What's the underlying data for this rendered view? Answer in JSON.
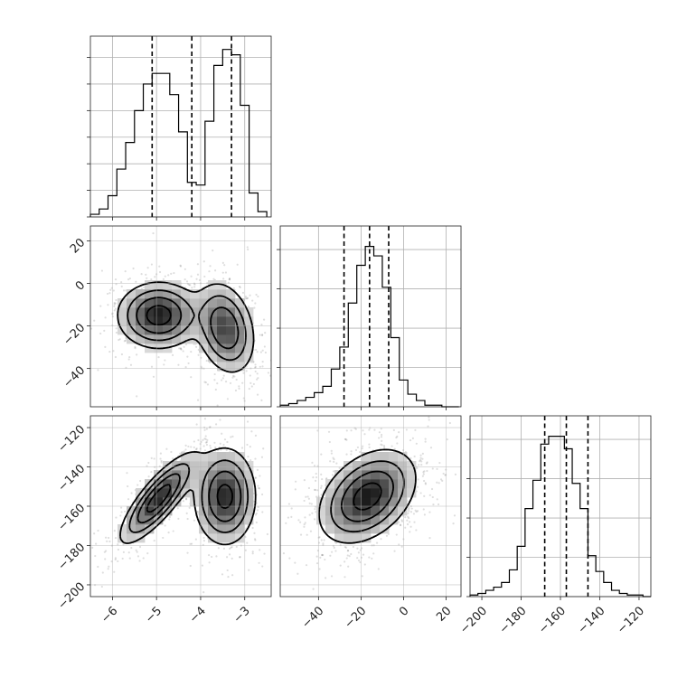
{
  "chart_data": {
    "type": "corner",
    "grid": true,
    "parameters": [
      {
        "range": [
          -6.5,
          -2.4
        ],
        "ticks": [
          -6,
          -5,
          -4,
          -3
        ],
        "tick_labels": [
          "−6",
          "−5",
          "−4",
          "−3"
        ],
        "quantiles": [
          -5.1,
          -4.2,
          -3.3
        ],
        "hist_bin_edges": [
          -6.5,
          -6.3,
          -6.1,
          -5.9,
          -5.7,
          -5.5,
          -5.3,
          -5.1,
          -4.9,
          -4.7,
          -4.5,
          -4.3,
          -4.1,
          -3.9,
          -3.7,
          -3.5,
          -3.3,
          -3.1,
          -2.9,
          -2.7,
          -2.5
        ],
        "hist_counts": [
          1,
          3,
          8,
          18,
          28,
          40,
          50,
          54,
          54,
          46,
          32,
          13,
          12,
          36,
          57,
          63,
          61,
          42,
          9,
          2
        ],
        "hist_ymax": 68,
        "hist_yticks": [
          0,
          10,
          20,
          30,
          40,
          50,
          60
        ]
      },
      {
        "range": [
          -58,
          27
        ],
        "ticks": [
          -40,
          -20,
          0,
          20
        ],
        "tick_labels": [
          "−40",
          "−20",
          "0",
          "20"
        ],
        "quantiles": [
          -28,
          -16,
          -7
        ],
        "hist_bin_edges": [
          -58,
          -54,
          -50,
          -46,
          -42,
          -38,
          -34,
          -30,
          -26,
          -22,
          -18,
          -14,
          -10,
          -6,
          -2,
          2,
          6,
          10,
          14,
          18,
          22,
          26
        ],
        "hist_counts": [
          1,
          2,
          4,
          6,
          9,
          13,
          24,
          38,
          66,
          90,
          102,
          96,
          76,
          44,
          17,
          8,
          4,
          1,
          1,
          0,
          0
        ],
        "hist_ymax": 115,
        "hist_yticks": [
          0,
          25,
          50,
          75,
          100
        ]
      },
      {
        "range": [
          -206,
          -114
        ],
        "ticks": [
          -200,
          -180,
          -160,
          -140,
          -120
        ],
        "tick_labels": [
          "−200",
          "−180",
          "−160",
          "−140",
          "−120"
        ],
        "quantiles": [
          -168,
          -157,
          -146
        ],
        "hist_bin_edges": [
          -206,
          -202,
          -198,
          -194,
          -190,
          -186,
          -182,
          -178,
          -174,
          -170,
          -166,
          -162,
          -158,
          -154,
          -150,
          -146,
          -142,
          -138,
          -134,
          -130,
          -126,
          -122,
          -118,
          -114
        ],
        "hist_counts": [
          1,
          2,
          4,
          6,
          9,
          17,
          32,
          56,
          74,
          97,
          102,
          102,
          94,
          72,
          56,
          26,
          16,
          9,
          4,
          2,
          1,
          1,
          0
        ],
        "hist_ymax": 115,
        "hist_yticks": [
          0,
          25,
          50,
          75,
          100
        ]
      }
    ],
    "pairs": [
      {
        "x_param": 0,
        "y_param": 1,
        "modes": [
          {
            "cx": -4.95,
            "cy": -15,
            "sx": 0.45,
            "sy": 7.5,
            "rho": 0.0,
            "weight": 0.55
          },
          {
            "cx": -3.45,
            "cy": -21,
            "sx": 0.33,
            "sy": 10.5,
            "rho": -0.25,
            "weight": 0.45
          }
        ],
        "contour_levels": [
          0.12,
          0.3,
          0.55,
          0.85
        ]
      },
      {
        "x_param": 0,
        "y_param": 2,
        "modes": [
          {
            "cx": -4.95,
            "cy": -156,
            "sx": 0.42,
            "sy": 11,
            "rho": 0.82,
            "weight": 0.52
          },
          {
            "cx": -3.45,
            "cy": -155,
            "sx": 0.34,
            "sy": 12,
            "rho": 0.0,
            "weight": 0.48
          }
        ],
        "contour_levels": [
          0.12,
          0.3,
          0.55,
          0.85
        ]
      },
      {
        "x_param": 1,
        "y_param": 2,
        "modes": [
          {
            "cx": -17,
            "cy": -155,
            "sx": 11,
            "sy": 11.5,
            "rho": 0.38,
            "weight": 1.0
          }
        ],
        "contour_levels": [
          0.12,
          0.3,
          0.55,
          0.85
        ]
      }
    ]
  }
}
